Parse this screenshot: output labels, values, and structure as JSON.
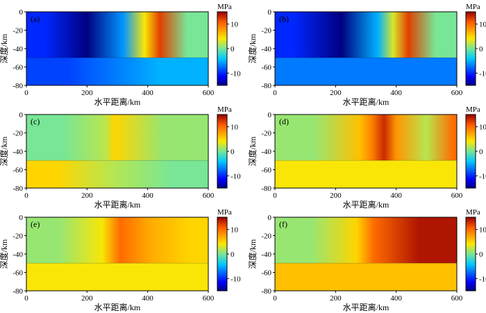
{
  "chart_data": [
    {
      "type": "heatmap",
      "panel_label": "(a)",
      "xlabel": "水平距离/km",
      "ylabel": "深度/km",
      "xlim": [
        0,
        600
      ],
      "ylim": [
        -80,
        0
      ],
      "xticks": [
        "0",
        "200",
        "400",
        "600"
      ],
      "yticks": [
        "0",
        "-20",
        "-40",
        "-60",
        "-80"
      ],
      "colorbar": {
        "unit": "MPa",
        "range": [
          -15,
          15
        ],
        "ticks": [
          "10",
          "0",
          "-10"
        ]
      },
      "layer_boundary_depth_km": -50,
      "background": -8,
      "upper_regions": [
        {
          "x": [
            0,
            120
          ],
          "value": -10
        },
        {
          "x": [
            120,
            280
          ],
          "value": -15
        },
        {
          "x": [
            280,
            360
          ],
          "value": -6
        },
        {
          "x": [
            360,
            420
          ],
          "value": 4
        },
        {
          "x": [
            420,
            460
          ],
          "value": 12
        },
        {
          "x": [
            460,
            600
          ],
          "value": 0
        }
      ],
      "lower_regions": [
        {
          "x": [
            0,
            280
          ],
          "value": -9
        },
        {
          "x": [
            280,
            600
          ],
          "value": -5
        }
      ]
    },
    {
      "type": "heatmap",
      "panel_label": "(b)",
      "xlabel": "水平距离/km",
      "ylabel": "深度/km",
      "xlim": [
        0,
        600
      ],
      "ylim": [
        -80,
        0
      ],
      "xticks": [
        "0",
        "200",
        "400",
        "600"
      ],
      "yticks": [
        "0",
        "-20",
        "-40",
        "-60",
        "-80"
      ],
      "colorbar": {
        "unit": "MPa",
        "range": [
          -15,
          15
        ],
        "ticks": [
          "10",
          "0",
          "-10"
        ]
      },
      "layer_boundary_depth_km": -50,
      "background": -8,
      "upper_regions": [
        {
          "x": [
            0,
            120
          ],
          "value": -10
        },
        {
          "x": [
            120,
            320
          ],
          "value": -15
        },
        {
          "x": [
            320,
            360
          ],
          "value": -5
        },
        {
          "x": [
            360,
            420
          ],
          "value": 3
        },
        {
          "x": [
            420,
            460
          ],
          "value": 12
        },
        {
          "x": [
            460,
            600
          ],
          "value": 0
        }
      ],
      "lower_regions": [
        {
          "x": [
            0,
            600
          ],
          "value": -7
        }
      ]
    },
    {
      "type": "heatmap",
      "panel_label": "(c)",
      "xlabel": "水平距离/km",
      "ylabel": "深度/km",
      "xlim": [
        0,
        600
      ],
      "ylim": [
        -80,
        0
      ],
      "xticks": [
        "0",
        "200",
        "400",
        "600"
      ],
      "yticks": [
        "0",
        "-20",
        "-40",
        "-60",
        "-80"
      ],
      "colorbar": {
        "unit": "MPa",
        "range": [
          -15,
          15
        ],
        "ticks": [
          "10",
          "0",
          "-10"
        ]
      },
      "layer_boundary_depth_km": -50,
      "background": 0,
      "upper_regions": [
        {
          "x": [
            0,
            240
          ],
          "value": 0
        },
        {
          "x": [
            240,
            280
          ],
          "value": 2
        },
        {
          "x": [
            280,
            300
          ],
          "value": 5
        },
        {
          "x": [
            300,
            600
          ],
          "value": 1
        }
      ],
      "lower_regions": [
        {
          "x": [
            0,
            200
          ],
          "value": 5
        },
        {
          "x": [
            200,
            360
          ],
          "value": 2
        },
        {
          "x": [
            360,
            600
          ],
          "value": 0
        }
      ]
    },
    {
      "type": "heatmap",
      "panel_label": "(d)",
      "xlabel": "水平距离/km",
      "ylabel": "深度/km",
      "xlim": [
        0,
        600
      ],
      "ylim": [
        -80,
        0
      ],
      "xticks": [
        "0",
        "200",
        "400",
        "600"
      ],
      "yticks": [
        "0",
        "-20",
        "-40",
        "-60",
        "-80"
      ],
      "colorbar": {
        "unit": "MPa",
        "range": [
          -15,
          15
        ],
        "ticks": [
          "10",
          "0",
          "-10"
        ]
      },
      "layer_boundary_depth_km": -50,
      "background": 1,
      "upper_regions": [
        {
          "x": [
            0,
            260
          ],
          "value": 1
        },
        {
          "x": [
            260,
            300
          ],
          "value": 6
        },
        {
          "x": [
            300,
            340
          ],
          "value": 9
        },
        {
          "x": [
            340,
            380
          ],
          "value": 13
        },
        {
          "x": [
            380,
            420
          ],
          "value": 8
        },
        {
          "x": [
            420,
            580
          ],
          "value": 2
        },
        {
          "x": [
            580,
            600
          ],
          "value": 10
        }
      ],
      "lower_regions": [
        {
          "x": [
            0,
            600
          ],
          "value": 4
        }
      ]
    },
    {
      "type": "heatmap",
      "panel_label": "(e)",
      "xlabel": "水平距离/km",
      "ylabel": "深度/km",
      "xlim": [
        0,
        600
      ],
      "ylim": [
        -80,
        0
      ],
      "xticks": [
        "0",
        "200",
        "400",
        "600"
      ],
      "yticks": [
        "0",
        "-20",
        "-40",
        "-60",
        "-80"
      ],
      "colorbar": {
        "unit": "MPa",
        "range": [
          -15,
          15
        ],
        "ticks": [
          "10",
          "0",
          "-10"
        ]
      },
      "layer_boundary_depth_km": -50,
      "background": 2,
      "upper_regions": [
        {
          "x": [
            0,
            220
          ],
          "value": 1
        },
        {
          "x": [
            220,
            280
          ],
          "value": 4
        },
        {
          "x": [
            280,
            340
          ],
          "value": 10
        },
        {
          "x": [
            340,
            480
          ],
          "value": 7
        },
        {
          "x": [
            480,
            600
          ],
          "value": 5
        }
      ],
      "lower_regions": [
        {
          "x": [
            0,
            600
          ],
          "value": 4
        }
      ]
    },
    {
      "type": "heatmap",
      "panel_label": "(f)",
      "xlabel": "水平距离/km",
      "ylabel": "深度/km",
      "xlim": [
        0,
        600
      ],
      "ylim": [
        -80,
        0
      ],
      "xticks": [
        "0",
        "200",
        "400",
        "600"
      ],
      "yticks": [
        "0",
        "-20",
        "-40",
        "-60",
        "-80"
      ],
      "colorbar": {
        "unit": "MPa",
        "range": [
          -15,
          15
        ],
        "ticks": [
          "10",
          "0",
          "-10"
        ]
      },
      "layer_boundary_depth_km": -50,
      "background": 2,
      "upper_regions": [
        {
          "x": [
            0,
            240
          ],
          "value": 1
        },
        {
          "x": [
            240,
            300
          ],
          "value": 5
        },
        {
          "x": [
            300,
            350
          ],
          "value": 10
        },
        {
          "x": [
            350,
            600
          ],
          "value": 14
        }
      ],
      "lower_regions": [
        {
          "x": [
            0,
            600
          ],
          "value": 6
        }
      ]
    }
  ]
}
